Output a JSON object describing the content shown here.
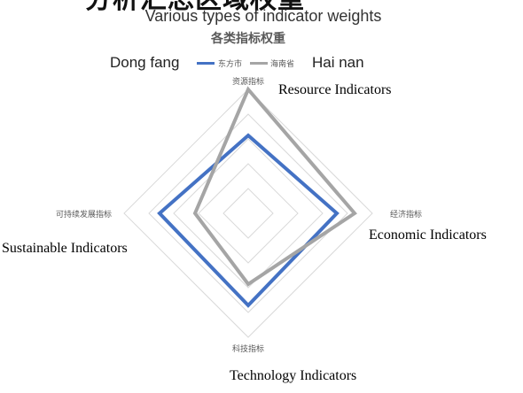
{
  "header": {
    "cut_title": "分析汇总区域权重",
    "subtitle_en": "Various types of indicator weights",
    "subtitle_zh": "各类指标权重"
  },
  "legend": {
    "left_en": "Dong fang",
    "right_en": "Hai nan",
    "items": [
      "东方市",
      "海南省"
    ]
  },
  "annotations": {
    "resource": "Resource Indicators",
    "economic": "Economic Indicators",
    "technology": "Technology Indicators",
    "sustainable": "Sustainable Indicators"
  },
  "colors": {
    "dongfang": "#4472c4",
    "hainan": "#a5a5a5",
    "grid": "#d9d9d9"
  },
  "chart_data": {
    "type": "radar",
    "title": "各类指标权重",
    "categories": [
      "资源指标",
      "经济指标",
      "科技指标",
      "可持续发展指标"
    ],
    "series": [
      {
        "name": "东方市",
        "values": [
          0.22,
          0.25,
          0.26,
          0.25
        ]
      },
      {
        "name": "海南省",
        "values": [
          0.35,
          0.3,
          0.2,
          0.15
        ]
      }
    ],
    "rlim": [
      0,
      0.35
    ],
    "grid_levels": 5,
    "legend": "top"
  }
}
